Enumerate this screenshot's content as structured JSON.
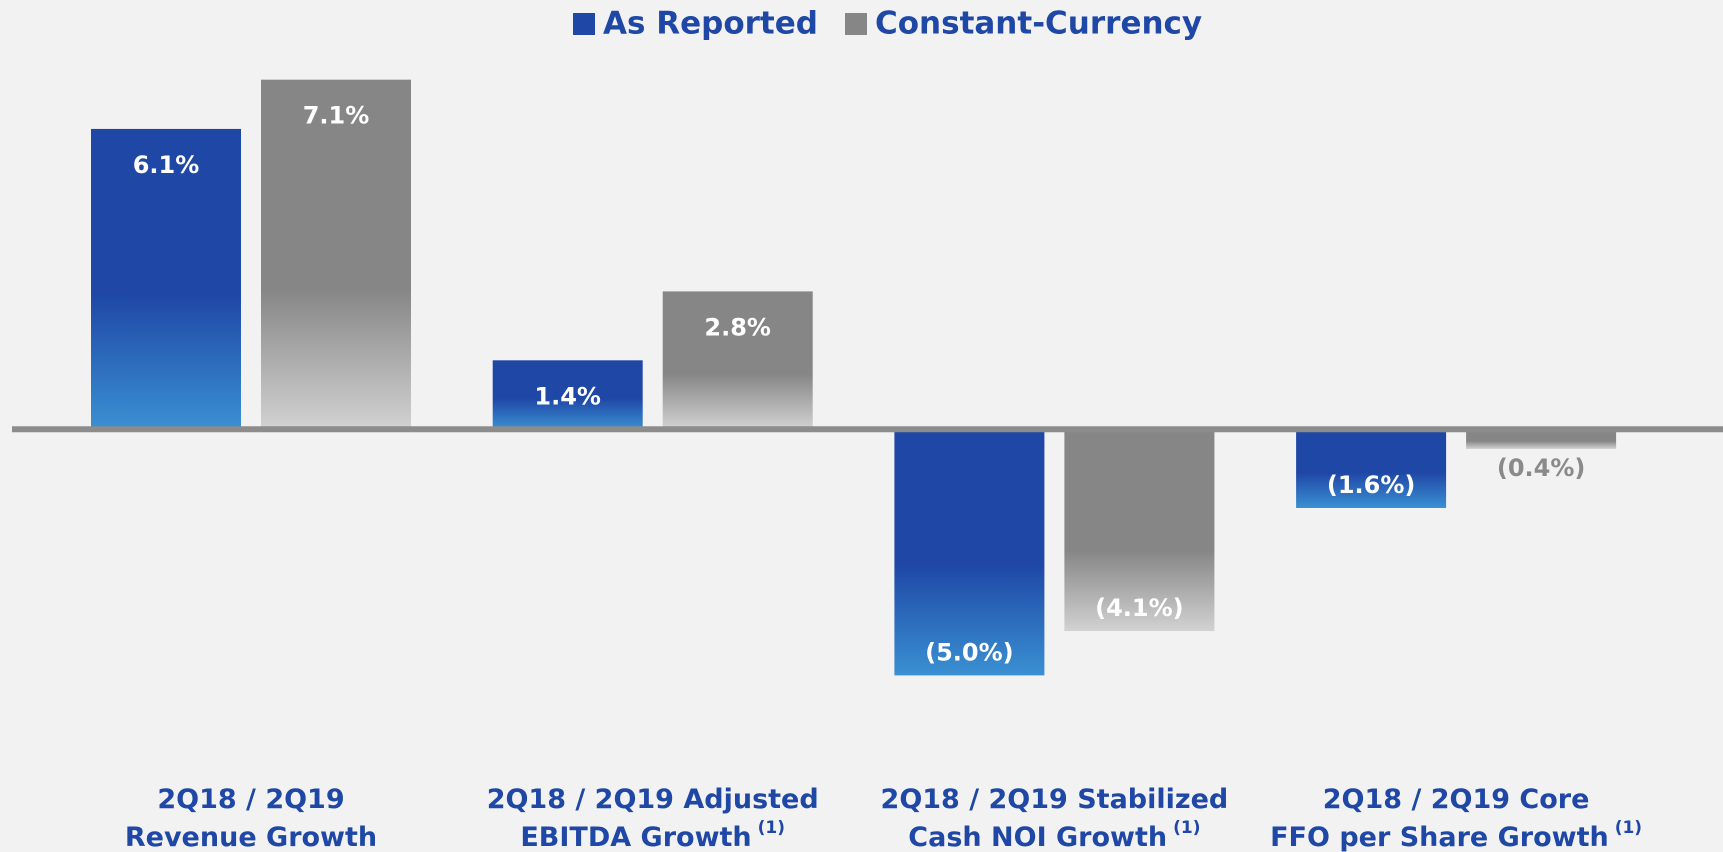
{
  "chart_data": {
    "type": "bar",
    "categories": [
      [
        "2Q18 / 2Q19",
        "Revenue Growth"
      ],
      [
        "2Q18 / 2Q19 Adjusted",
        "EBITDA Growth"
      ],
      [
        "2Q18 / 2Q19 Stabilized",
        "Cash NOI Growth"
      ],
      [
        "2Q18 / 2Q19 Core",
        "FFO per Share Growth"
      ]
    ],
    "category_notes": [
      null,
      "(1)",
      "(1)",
      "(1)"
    ],
    "series": [
      {
        "name": "As Reported",
        "color": "#1f47a6",
        "values": [
          6.1,
          1.4,
          -5.0,
          -1.6
        ],
        "value_labels": [
          "6.1%",
          "1.4%",
          "(5.0%)",
          "(1.6%)"
        ]
      },
      {
        "name": "Constant-Currency",
        "color": "#868686",
        "values": [
          7.1,
          2.8,
          -4.1,
          -0.4
        ],
        "value_labels": [
          "7.1%",
          "2.8%",
          "(4.1%)",
          "(0.4%)"
        ]
      }
    ],
    "ylim": [
      -5.5,
      7.5
    ],
    "legend": "top"
  }
}
